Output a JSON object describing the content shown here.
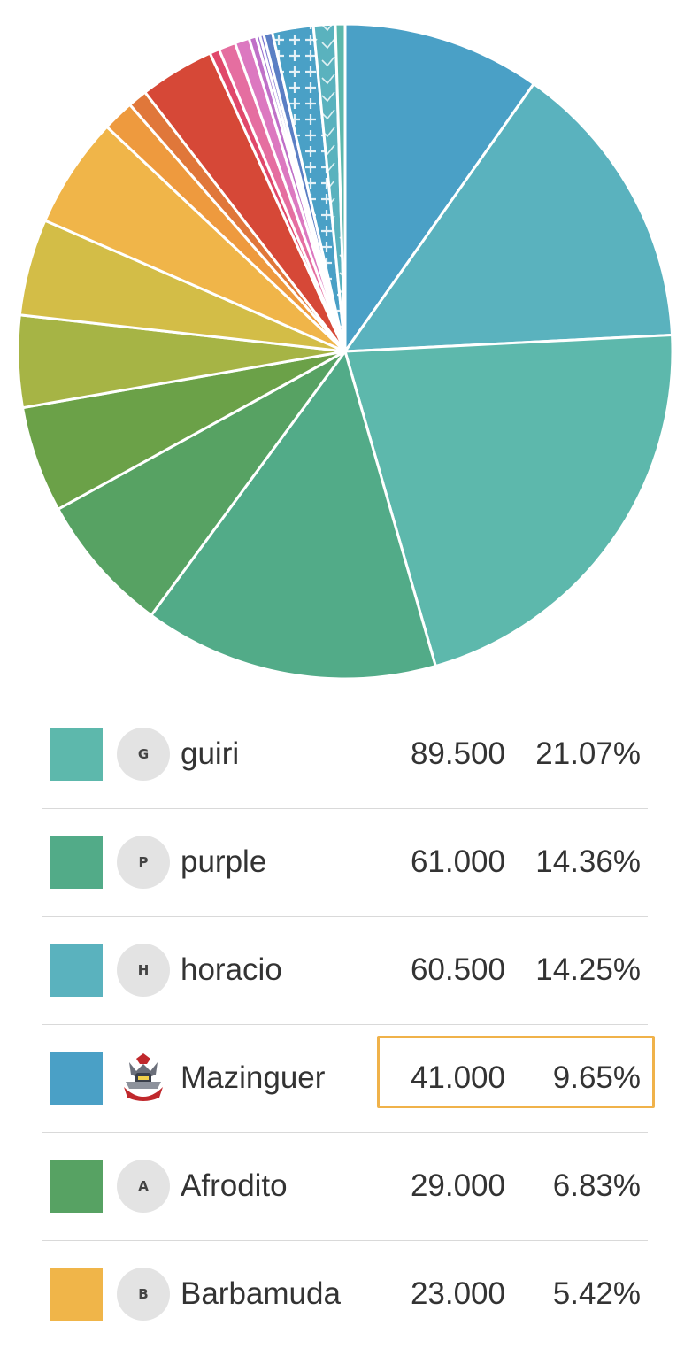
{
  "chart_data": {
    "type": "pie",
    "legend_placement": "bottom",
    "slices": [
      {
        "name": "Mazinguer",
        "value": 41.0,
        "percent": "9.65%",
        "value_label": "41.000",
        "color": "#4aa0c6",
        "avatar": "robot-icon"
      },
      {
        "name": "horacio",
        "value": 60.5,
        "percent": "14.25%",
        "value_label": "60.500",
        "color": "#5ab2be",
        "avatar_letter": "H"
      },
      {
        "name": "guiri",
        "value": 89.5,
        "percent": "21.07%",
        "value_label": "89.500",
        "color": "#5db8ac",
        "avatar_letter": "G"
      },
      {
        "name": "purple",
        "value": 61.0,
        "percent": "14.36%",
        "value_label": "61.000",
        "color": "#52ab88",
        "avatar_letter": "P"
      },
      {
        "name": "Afrodito",
        "value": 29.0,
        "percent": "6.83%",
        "value_label": "29.000",
        "color": "#57a263",
        "avatar_letter": "A"
      },
      {
        "value": 22.0,
        "color": "#6ba148"
      },
      {
        "value": 19.0,
        "color": "#a6b445"
      },
      {
        "value": 20.0,
        "color": "#d3bd47"
      },
      {
        "name": "Barbamuda",
        "value": 23.0,
        "percent": "5.42%",
        "value_label": "23.000",
        "color": "#f0b549",
        "avatar_letter": "B"
      },
      {
        "value": 6.5,
        "color": "#ee9a3e"
      },
      {
        "value": 4.0,
        "color": "#e0773a"
      },
      {
        "value": 15.5,
        "color": "#d64837"
      },
      {
        "value": 2.0,
        "color": "#e0486a"
      },
      {
        "value": 3.5,
        "color": "#e56ea0"
      },
      {
        "value": 3.0,
        "color": "#dc78c0"
      },
      {
        "value": 1.5,
        "color": "#bf70c8"
      },
      {
        "value": 0.8,
        "color": "#9b72d0"
      },
      {
        "value": 0.8,
        "color": "#7c78d0"
      },
      {
        "value": 1.8,
        "color": "#5b7fc4"
      },
      {
        "value": 8.5,
        "color": "#4aa0c6",
        "pattern": "plus"
      },
      {
        "value": 4.5,
        "color": "#5ab2be",
        "pattern": "check"
      },
      {
        "value": 2.0,
        "color": "#5db8ac"
      }
    ]
  },
  "legend": [
    {
      "name": "guiri",
      "value": "89.500",
      "percent": "21.07%",
      "color": "#5db8ac",
      "avatar_letter": "G"
    },
    {
      "name": "purple",
      "value": "61.000",
      "percent": "14.36%",
      "color": "#52ab88",
      "avatar_letter": "P"
    },
    {
      "name": "horacio",
      "value": "60.500",
      "percent": "14.25%",
      "color": "#5ab2be",
      "avatar_letter": "H"
    },
    {
      "name": "Mazinguer",
      "value": "41.000",
      "percent": "9.65%",
      "color": "#4aa0c6",
      "avatar_letter": "",
      "avatar_icon": "robot-icon",
      "highlighted": true
    },
    {
      "name": "Afrodito",
      "value": "29.000",
      "percent": "6.83%",
      "color": "#57a263",
      "avatar_letter": "A"
    },
    {
      "name": "Barbamuda",
      "value": "23.000",
      "percent": "5.42%",
      "color": "#f0b549",
      "avatar_letter": "B"
    }
  ],
  "highlight_color": "#f0b24a"
}
